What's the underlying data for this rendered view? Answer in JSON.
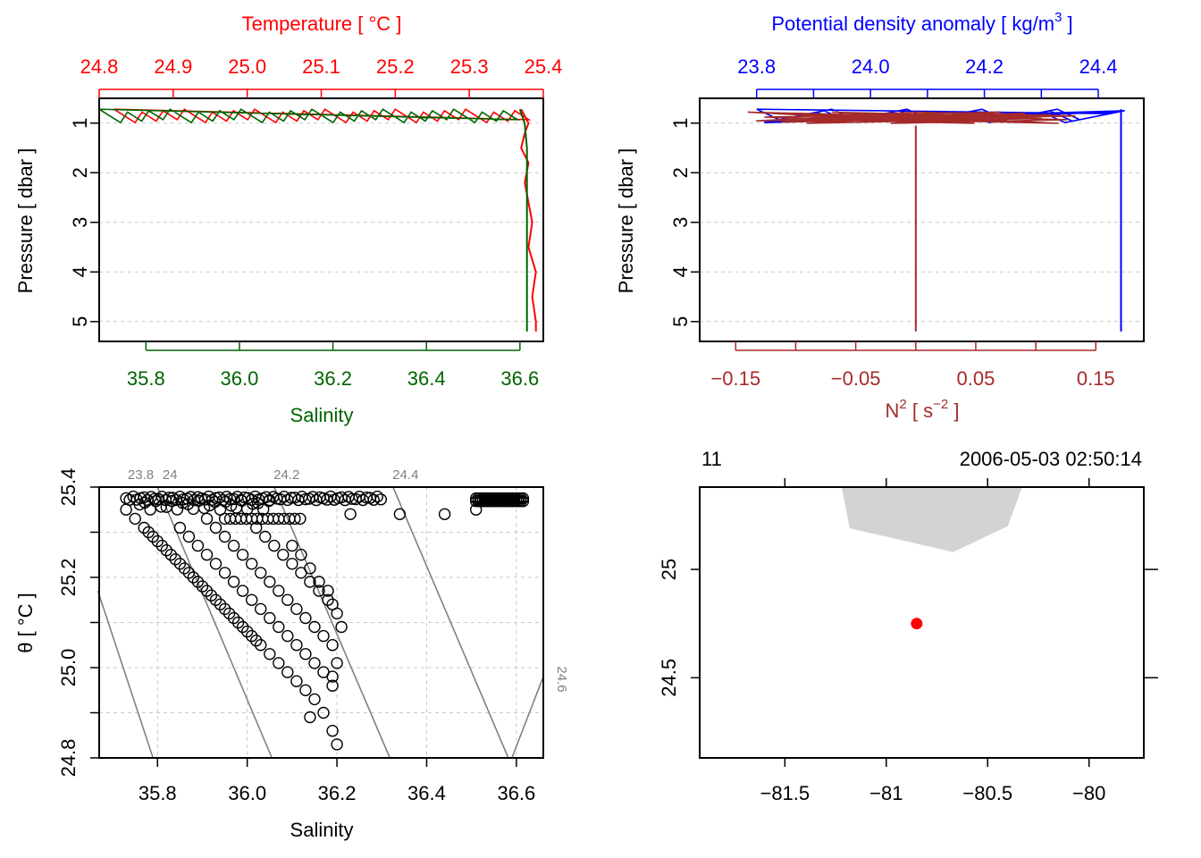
{
  "panels": {
    "ts_profile": {
      "top_axis_title": "Temperature [ °C ]",
      "top_ticks": [
        "24.8",
        "24.9",
        "25.0",
        "25.1",
        "25.2",
        "25.3",
        "25.4"
      ],
      "bottom_axis_title": "Salinity",
      "bottom_ticks": [
        "35.8",
        "36.0",
        "36.2",
        "36.4",
        "36.6"
      ],
      "left_axis_title": "Pressure [ dbar ]",
      "left_ticks": [
        "1",
        "2",
        "3",
        "4",
        "5"
      ],
      "colors": {
        "temperature": "#ff0000",
        "salinity": "#006400"
      }
    },
    "density_profile": {
      "top_axis_title_main": "Potential density anomaly [ kg/m",
      "top_axis_title_sup": "3",
      "top_axis_title_end": " ]",
      "top_ticks": [
        "23.8",
        "24.0",
        "24.2",
        "24.4"
      ],
      "bottom_axis_title_main": "N",
      "bottom_axis_title_sup": "2",
      "bottom_axis_title_unit": " [ s",
      "bottom_axis_title_unit_sup": "−2",
      "bottom_axis_title_end": " ]",
      "bottom_ticks": [
        "-0.15",
        "-0.05",
        "0.05",
        "0.15"
      ],
      "left_axis_title": "Pressure [ dbar ]",
      "left_ticks": [
        "1",
        "2",
        "3",
        "4",
        "5"
      ],
      "colors": {
        "density": "#0000ff",
        "n2": "#a52a2a"
      }
    },
    "ts_diagram": {
      "xlabel": "Salinity",
      "ylabel": "θ [ °C ]",
      "x_ticks": [
        "35.8",
        "36.0",
        "36.2",
        "36.4",
        "36.6"
      ],
      "y_ticks": [
        "24.8",
        "25.0",
        "25.2",
        "25.4"
      ],
      "isopycnal_labels": [
        "23.8",
        "24",
        "24.2",
        "24.4",
        "24.6"
      ]
    },
    "map": {
      "station": "11",
      "datetime": "2006-05-03 02:50:14",
      "x_ticks": [
        "-81.5",
        "-81",
        "-80.5",
        "-80"
      ],
      "y_ticks": [
        "24.5",
        "25"
      ],
      "colors": {
        "land": "#d3d3d3",
        "station": "#ff0000"
      }
    }
  },
  "chart_data": [
    {
      "type": "line",
      "title": "",
      "x_top_label": "Temperature [ °C ]",
      "x_bottom_label": "Salinity",
      "ylabel": "Pressure [ dbar ]",
      "ylim": [
        5.4,
        0.5
      ],
      "xlim_temperature": [
        24.8,
        25.4
      ],
      "xlim_salinity": [
        35.7,
        36.65
      ],
      "y_reversed": true,
      "grid": true,
      "series": [
        {
          "name": "Temperature",
          "pressure": [
            0.72,
            1.0,
            1.2,
            1.5,
            1.8,
            2.2,
            2.6,
            3.0,
            3.5,
            4.0,
            4.5,
            5.0,
            5.2
          ],
          "values": [
            25.37,
            25.38,
            25.375,
            25.37,
            25.38,
            25.375,
            25.38,
            25.385,
            25.38,
            25.39,
            25.385,
            25.39,
            25.39
          ]
        },
        {
          "name": "Salinity",
          "pressure": [
            0.72,
            1.0,
            1.5,
            2.0,
            3.0,
            4.0,
            5.0,
            5.2
          ],
          "values": [
            36.6,
            36.61,
            36.615,
            36.615,
            36.615,
            36.615,
            36.615,
            36.615
          ]
        }
      ]
    },
    {
      "type": "line",
      "title": "",
      "x_top_label": "Potential density anomaly [ kg/m3 ]",
      "x_bottom_label": "N2 [ s-2 ]",
      "ylabel": "Pressure [ dbar ]",
      "ylim": [
        5.4,
        0.5
      ],
      "xlim_density": [
        23.7,
        24.48
      ],
      "xlim_n2": [
        -0.18,
        0.19
      ],
      "y_reversed": true,
      "series": [
        {
          "name": "Potential density anomaly",
          "pressure": [
            0.72,
            1.0,
            1.5,
            2.0,
            3.0,
            4.0,
            5.0,
            5.2
          ],
          "values": [
            24.44,
            24.44,
            24.44,
            24.44,
            24.44,
            24.44,
            24.44,
            24.44
          ]
        },
        {
          "name": "N2",
          "pressure": [
            1.05,
            1.5,
            2.0,
            3.0,
            4.0,
            5.0,
            5.2
          ],
          "values": [
            0.0,
            0.0,
            0.0,
            0.0,
            0.0,
            0.0,
            0.0
          ]
        }
      ]
    },
    {
      "type": "scatter",
      "title": "",
      "xlabel": "Salinity",
      "ylabel": "θ [ °C ]",
      "xlim": [
        35.67,
        36.66
      ],
      "ylim": [
        24.8,
        25.4
      ],
      "grid": true,
      "points": [
        [
          35.73,
          25.35
        ],
        [
          35.75,
          25.33
        ],
        [
          35.77,
          25.31
        ],
        [
          35.79,
          25.29
        ],
        [
          35.81,
          25.27
        ],
        [
          35.83,
          25.25
        ],
        [
          35.85,
          25.23
        ],
        [
          35.87,
          25.21
        ],
        [
          35.89,
          25.19
        ],
        [
          35.91,
          25.17
        ],
        [
          35.93,
          25.15
        ],
        [
          35.95,
          25.13
        ],
        [
          35.97,
          25.11
        ],
        [
          35.99,
          25.09
        ],
        [
          36.01,
          25.07
        ],
        [
          36.03,
          25.05
        ],
        [
          36.05,
          25.03
        ],
        [
          36.07,
          25.01
        ],
        [
          36.09,
          24.99
        ],
        [
          36.11,
          24.97
        ],
        [
          36.13,
          24.95
        ],
        [
          36.15,
          24.93
        ],
        [
          36.17,
          24.9
        ],
        [
          36.19,
          24.86
        ],
        [
          36.2,
          24.83
        ],
        [
          35.85,
          25.31
        ],
        [
          35.87,
          25.29
        ],
        [
          35.89,
          25.27
        ],
        [
          35.91,
          25.25
        ],
        [
          35.93,
          25.23
        ],
        [
          35.95,
          25.21
        ],
        [
          35.97,
          25.19
        ],
        [
          35.99,
          25.17
        ],
        [
          36.01,
          25.15
        ],
        [
          36.03,
          25.13
        ],
        [
          36.05,
          25.11
        ],
        [
          36.07,
          25.09
        ],
        [
          36.09,
          25.07
        ],
        [
          36.11,
          25.05
        ],
        [
          36.13,
          25.03
        ],
        [
          36.15,
          25.01
        ],
        [
          36.17,
          24.99
        ],
        [
          35.91,
          25.33
        ],
        [
          35.93,
          25.31
        ],
        [
          35.95,
          25.29
        ],
        [
          35.97,
          25.27
        ],
        [
          35.99,
          25.25
        ],
        [
          36.01,
          25.23
        ],
        [
          36.03,
          25.21
        ],
        [
          36.05,
          25.19
        ],
        [
          36.07,
          25.17
        ],
        [
          36.09,
          25.15
        ],
        [
          36.11,
          25.13
        ],
        [
          36.13,
          25.11
        ],
        [
          36.15,
          25.09
        ],
        [
          36.17,
          25.07
        ],
        [
          36.19,
          25.05
        ],
        [
          36.02,
          25.31
        ],
        [
          36.04,
          25.29
        ],
        [
          36.06,
          25.27
        ],
        [
          36.08,
          25.25
        ],
        [
          36.1,
          25.23
        ],
        [
          36.12,
          25.21
        ],
        [
          36.14,
          25.19
        ],
        [
          36.16,
          25.17
        ],
        [
          36.18,
          25.15
        ],
        [
          36.2,
          25.12
        ],
        [
          36.21,
          25.09
        ],
        [
          35.78,
          25.3
        ],
        [
          35.8,
          25.28
        ],
        [
          35.82,
          25.26
        ],
        [
          35.84,
          25.24
        ],
        [
          35.86,
          25.22
        ],
        [
          35.88,
          25.2
        ],
        [
          35.9,
          25.18
        ],
        [
          35.92,
          25.16
        ],
        [
          35.94,
          25.14
        ],
        [
          35.96,
          25.12
        ],
        [
          35.98,
          25.1
        ],
        [
          36.0,
          25.08
        ],
        [
          36.02,
          25.06
        ],
        [
          36.1,
          25.27
        ],
        [
          36.12,
          25.25
        ],
        [
          36.14,
          25.22
        ],
        [
          36.16,
          25.19
        ],
        [
          36.18,
          25.17
        ],
        [
          36.19,
          25.14
        ],
        [
          36.2,
          25.01
        ],
        [
          36.19,
          24.98
        ],
        [
          36.19,
          24.96
        ],
        [
          36.14,
          24.89
        ],
        [
          36.23,
          25.34
        ],
        [
          36.34,
          25.34
        ],
        [
          36.44,
          25.34
        ],
        [
          36.51,
          25.35
        ]
      ],
      "top_row": {
        "s_range": [
          35.73,
          36.3
        ],
        "theta": 25.375
      },
      "cluster": {
        "s_range": [
          36.51,
          36.62
        ],
        "theta": 25.375
      },
      "isopycnals": [
        {
          "label": "23.8",
          "s": [
            35.79,
            35.667
          ],
          "theta": [
            24.8,
            25.17
          ]
        },
        {
          "label": "24",
          "s": [
            36.055,
            35.8
          ],
          "theta": [
            24.8,
            25.4
          ]
        },
        {
          "label": "24.2",
          "s": [
            36.318,
            36.06
          ],
          "theta": [
            24.8,
            25.4
          ]
        },
        {
          "label": "24.4",
          "s": [
            36.582,
            36.325
          ],
          "theta": [
            24.8,
            25.4
          ]
        },
        {
          "label": "24.6",
          "s": [
            36.66,
            36.59
          ],
          "theta": [
            24.98,
            24.8
          ]
        }
      ]
    },
    {
      "type": "scatter",
      "title": "",
      "xlim": [
        -81.92,
        -79.73
      ],
      "ylim": [
        24.13,
        25.38
      ],
      "station": {
        "lon": -80.85,
        "lat": 24.75
      },
      "land": [
        [
          -81.22,
          25.38
        ],
        [
          -80.33,
          25.38
        ],
        [
          -80.4,
          25.2
        ],
        [
          -80.67,
          25.08
        ],
        [
          -81.18,
          25.19
        ]
      ]
    }
  ]
}
